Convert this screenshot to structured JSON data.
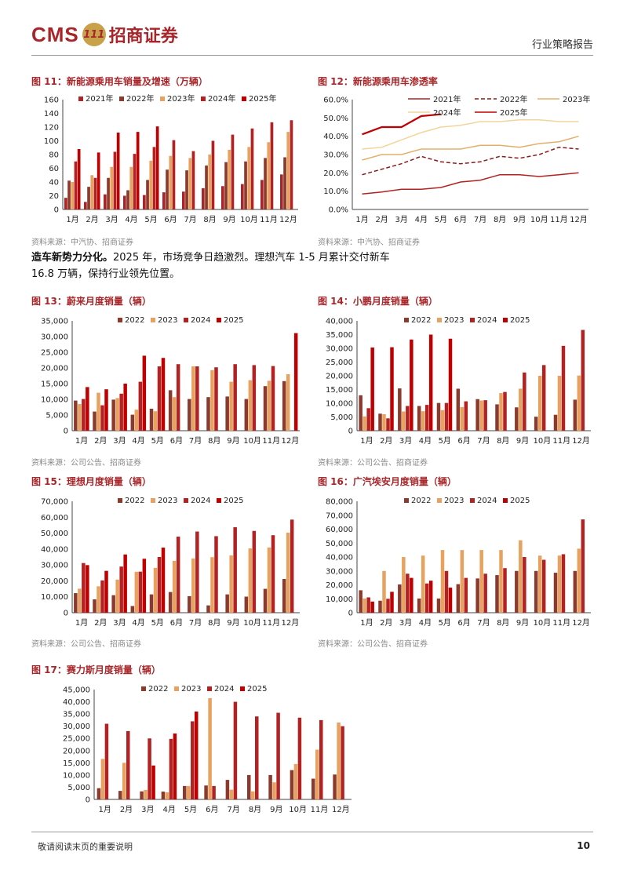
{
  "header": {
    "logo_cms": "CMS",
    "logo_mark": "111",
    "logo_cn": "招商证券",
    "report_type": "行业策略报告"
  },
  "colors": {
    "y2021": "#a8262a",
    "y2022": "#8b3a2e",
    "y2023": "#e8a25f",
    "y2024": "#b22222",
    "y2025": "#c00000",
    "line2021": "#b22222",
    "line2022": "#8b1a1a",
    "line2023": "#e3b06a",
    "line2024": "#f1d69a",
    "line2025": "#c00000"
  },
  "text_block": {
    "bold": "造车新势力分化。",
    "line1": "2025 年，市场竞争日趋激烈。理想汽车 1-5 月累计交付新车",
    "line2": "16.8 万辆，保持行业领先位置。"
  },
  "footer": {
    "note": "敬请阅读末页的重要说明",
    "page": "10"
  },
  "chart_data": [
    {
      "id": "fig11",
      "type": "bar",
      "title": "图 11：新能源乘用车销量及增速（万辆）",
      "source": "资料来源：中汽协、招商证券",
      "categories": [
        "1月",
        "2月",
        "3月",
        "4月",
        "5月",
        "6月",
        "7月",
        "8月",
        "9月",
        "10月",
        "11月",
        "12月"
      ],
      "ylim": [
        0,
        160
      ],
      "yticks": [
        0,
        20,
        40,
        60,
        80,
        100,
        120,
        140,
        160
      ],
      "series": [
        {
          "name": "2021年",
          "color_key": "y2021",
          "values": [
            17,
            11,
            22,
            20,
            21,
            25,
            26,
            31,
            34,
            37,
            43,
            51
          ]
        },
        {
          "name": "2022年",
          "color_key": "y2022",
          "values": [
            42,
            33,
            46,
            28,
            43,
            58,
            57,
            64,
            69,
            70,
            75,
            76
          ]
        },
        {
          "name": "2023年",
          "color_key": "y2023",
          "values": [
            40,
            50,
            62,
            62,
            71,
            78,
            75,
            80,
            87,
            91,
            98,
            113
          ]
        },
        {
          "name": "2024年",
          "color_key": "y2024",
          "values": [
            70,
            46,
            84,
            81,
            91,
            101,
            85,
            100,
            109,
            118,
            127,
            130
          ]
        },
        {
          "name": "2025年",
          "color_key": "y2025",
          "values": [
            88,
            83,
            112,
            113,
            121,
            null,
            null,
            null,
            null,
            null,
            null,
            null
          ]
        }
      ]
    },
    {
      "id": "fig12",
      "type": "line",
      "title": "图 12：新能源乘用车渗透率",
      "source": "资料来源：中汽协、招商证券",
      "categories": [
        "1月",
        "2月",
        "3月",
        "4月",
        "5月",
        "6月",
        "7月",
        "8月",
        "9月",
        "10月",
        "11月",
        "12月"
      ],
      "ylim": [
        0,
        60
      ],
      "yticks": [
        "0.0%",
        "10.0%",
        "20.0%",
        "30.0%",
        "40.0%",
        "50.0%",
        "60.0%"
      ],
      "series": [
        {
          "name": "2021年",
          "color_key": "line2021",
          "dash": false,
          "values": [
            8.5,
            9.5,
            11,
            11,
            12,
            15,
            16,
            19,
            19,
            18,
            19,
            20
          ]
        },
        {
          "name": "2022年",
          "color_key": "line2022",
          "dash": true,
          "values": [
            19,
            22,
            25,
            29,
            26,
            25,
            26,
            29,
            28,
            30,
            34,
            33
          ]
        },
        {
          "name": "2023年",
          "color_key": "line2023",
          "dash": false,
          "values": [
            27,
            30,
            30,
            33,
            33,
            33,
            35,
            35,
            34,
            36,
            37,
            40
          ]
        },
        {
          "name": "2024年",
          "color_key": "line2024",
          "dash": false,
          "values": [
            33,
            34,
            38,
            42,
            45,
            46,
            48,
            48,
            49,
            49,
            48,
            48
          ]
        },
        {
          "name": "2025年",
          "color_key": "line2025",
          "dash": false,
          "values": [
            41,
            45,
            45,
            51,
            52,
            null,
            null,
            null,
            null,
            null,
            null,
            null
          ]
        }
      ]
    },
    {
      "id": "fig13",
      "type": "bar",
      "title": "图 13：蔚来月度销量（辆）",
      "source": "资料来源：公司公告、招商证券",
      "categories": [
        "1月",
        "2月",
        "3月",
        "4月",
        "5月",
        "6月",
        "7月",
        "8月",
        "9月",
        "10月",
        "11月",
        "12月"
      ],
      "ylim": [
        0,
        35000
      ],
      "yticks": [
        "0",
        "5,000",
        "10,000",
        "15,000",
        "20,000",
        "25,000",
        "30,000",
        "35,000"
      ],
      "series": [
        {
          "name": "2022",
          "color_key": "y2022",
          "values": [
            9600,
            6100,
            9900,
            5100,
            7000,
            12900,
            10100,
            10700,
            10900,
            10100,
            14200,
            15800
          ]
        },
        {
          "name": "2023",
          "color_key": "y2023",
          "values": [
            8500,
            12100,
            10400,
            6700,
            6200,
            10700,
            20500,
            19300,
            15600,
            16100,
            15900,
            18000
          ]
        },
        {
          "name": "2024",
          "color_key": "y2024",
          "values": [
            10100,
            8100,
            11800,
            15600,
            20500,
            21200,
            20500,
            20200,
            21200,
            20900,
            20600,
            null
          ]
        },
        {
          "name": "2025",
          "color_key": "y2025",
          "values": [
            13900,
            13200,
            15000,
            23900,
            23200,
            null,
            null,
            null,
            null,
            null,
            null,
            31100
          ]
        }
      ]
    },
    {
      "id": "fig14",
      "type": "bar",
      "title": "图 14：小鹏月度销量（辆）",
      "source": "资料来源：公司公告、招商证券",
      "categories": [
        "1月",
        "2月",
        "3月",
        "4月",
        "5月",
        "6月",
        "7月",
        "8月",
        "9月",
        "10月",
        "11月",
        "12月"
      ],
      "ylim": [
        0,
        40000
      ],
      "yticks": [
        "0",
        "5,000",
        "10,000",
        "15,000",
        "20,000",
        "25,000",
        "30,000",
        "35,000",
        "40,000"
      ],
      "series": [
        {
          "name": "2022",
          "color_key": "y2022",
          "values": [
            12900,
            6200,
            15400,
            9000,
            10100,
            15300,
            11500,
            9600,
            8500,
            5100,
            5800,
            11300
          ]
        },
        {
          "name": "2023",
          "color_key": "y2023",
          "values": [
            5200,
            6000,
            7000,
            7100,
            7500,
            8600,
            11000,
            13700,
            15300,
            20000,
            20000,
            20100
          ]
        },
        {
          "name": "2024",
          "color_key": "y2024",
          "values": [
            8200,
            4500,
            9000,
            9400,
            10100,
            10700,
            11100,
            14100,
            21200,
            23900,
            30900,
            36700
          ]
        },
        {
          "name": "2025",
          "color_key": "y2025",
          "values": [
            30300,
            30400,
            33200,
            35000,
            33500,
            null,
            null,
            null,
            null,
            null,
            null,
            null
          ]
        }
      ]
    },
    {
      "id": "fig15",
      "type": "bar",
      "title": "图 15：理想月度销量（辆）",
      "source": "资料来源：公司公告、招商证券",
      "categories": [
        "1月",
        "2月",
        "3月",
        "4月",
        "5月",
        "6月",
        "7月",
        "8月",
        "9月",
        "10月",
        "11月",
        "12月"
      ],
      "ylim": [
        0,
        70000
      ],
      "yticks": [
        "0",
        "10,000",
        "20,000",
        "30,000",
        "40,000",
        "50,000",
        "60,000",
        "70,000"
      ],
      "series": [
        {
          "name": "2022",
          "color_key": "y2022",
          "values": [
            12300,
            8400,
            11000,
            4200,
            11500,
            13000,
            10400,
            4600,
            11500,
            10100,
            15000,
            21200
          ]
        },
        {
          "name": "2023",
          "color_key": "y2023",
          "values": [
            15100,
            16600,
            20800,
            25700,
            28200,
            32600,
            34100,
            34900,
            36000,
            40400,
            41000,
            50300
          ]
        },
        {
          "name": "2024",
          "color_key": "y2024",
          "values": [
            31200,
            20300,
            29000,
            25800,
            35000,
            47800,
            51000,
            48100,
            53700,
            51400,
            48700,
            58500
          ]
        },
        {
          "name": "2025",
          "color_key": "y2025",
          "values": [
            29900,
            26300,
            36600,
            33900,
            40900,
            null,
            null,
            null,
            null,
            null,
            null,
            null
          ]
        }
      ]
    },
    {
      "id": "fig16",
      "type": "bar",
      "title": "图 16：广汽埃安月度销量（辆）",
      "source": "资料来源：公司公告、招商证券",
      "categories": [
        "1月",
        "2月",
        "3月",
        "4月",
        "5月",
        "6月",
        "7月",
        "8月",
        "9月",
        "10月",
        "11月",
        "12月"
      ],
      "ylim": [
        0,
        80000
      ],
      "yticks": [
        "0",
        "10,000",
        "20,000",
        "30,000",
        "40,000",
        "50,000",
        "60,000",
        "70,000",
        "80,000"
      ],
      "series": [
        {
          "name": "2022",
          "color_key": "y2022",
          "values": [
            16100,
            8600,
            20300,
            10200,
            10200,
            20500,
            24600,
            27000,
            30000,
            30000,
            28700,
            30000
          ]
        },
        {
          "name": "2023",
          "color_key": "y2023",
          "values": [
            10200,
            30000,
            40000,
            41000,
            45000,
            45000,
            45000,
            45000,
            52000,
            41000,
            41000,
            46000
          ]
        },
        {
          "name": "2024",
          "color_key": "y2024",
          "values": [
            11000,
            10000,
            28000,
            21000,
            30000,
            25000,
            28000,
            32000,
            40000,
            38000,
            42000,
            67000
          ]
        },
        {
          "name": "2025",
          "color_key": "y2025",
          "values": [
            8000,
            15000,
            25000,
            23000,
            18000,
            null,
            null,
            null,
            null,
            null,
            null,
            null
          ]
        }
      ]
    },
    {
      "id": "fig17",
      "type": "bar",
      "title": "图 17：赛力斯月度销量（辆）",
      "source": "",
      "categories": [
        "1月",
        "2月",
        "3月",
        "4月",
        "5月",
        "6月",
        "7月",
        "8月",
        "9月",
        "10月",
        "11月",
        "12月"
      ],
      "ylim": [
        0,
        45000
      ],
      "yticks": [
        "0",
        "5,000",
        "10,000",
        "15,000",
        "20,000",
        "25,000",
        "30,000",
        "35,000",
        "40,000",
        "45,000"
      ],
      "series": [
        {
          "name": "2022",
          "color_key": "y2022",
          "values": [
            4600,
            3500,
            3300,
            3200,
            5500,
            5700,
            8000,
            10000,
            10000,
            12000,
            8500,
            10200
          ]
        },
        {
          "name": "2023",
          "color_key": "y2023",
          "values": [
            16600,
            15000,
            3900,
            2900,
            5500,
            41500,
            4000,
            3300,
            7000,
            14500,
            20400,
            31500
          ]
        },
        {
          "name": "2024",
          "color_key": "y2024",
          "values": [
            31000,
            28000,
            25000,
            24800,
            32000,
            5500,
            40000,
            34000,
            35500,
            33500,
            32500,
            30000
          ]
        },
        {
          "name": "2025",
          "color_key": "y2025",
          "values": [
            null,
            null,
            13900,
            27000,
            36000,
            null,
            null,
            null,
            null,
            null,
            null,
            null
          ]
        }
      ]
    }
  ]
}
